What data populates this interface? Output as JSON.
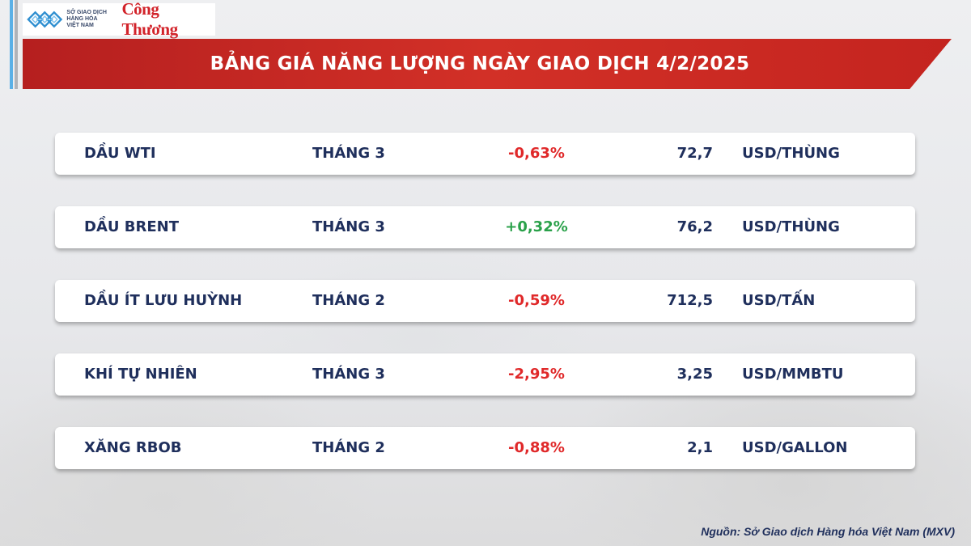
{
  "logo": {
    "exchange_lines": [
      "SỞ GIAO DỊCH",
      "HÀNG HÓA",
      "VIỆT NAM"
    ],
    "publisher": "Công Thương"
  },
  "header": {
    "title": "BẢNG GIÁ NĂNG LƯỢNG NGÀY GIAO DỊCH 4/2/2025"
  },
  "colors": {
    "negative": "#e0292a",
    "positive": "#2aa14a",
    "text": "#1f2f5c",
    "header_band": "#d23027"
  },
  "rows": [
    {
      "name": "DẦU WTI",
      "month": "THÁNG 3",
      "change": "-0,63%",
      "direction": "down",
      "price": "72,7",
      "unit": "USD/THÙNG"
    },
    {
      "name": "DẦU BRENT",
      "month": "THÁNG 3",
      "change": "+0,32%",
      "direction": "up",
      "price": "76,2",
      "unit": "USD/THÙNG"
    },
    {
      "name": "DẦU ÍT LƯU HUỲNH",
      "month": "THÁNG 2",
      "change": "-0,59%",
      "direction": "down",
      "price": "712,5",
      "unit": "USD/TẤN"
    },
    {
      "name": "KHÍ TỰ NHIÊN",
      "month": "THÁNG 3",
      "change": "-2,95%",
      "direction": "down",
      "price": "3,25",
      "unit": "USD/MMBTU"
    },
    {
      "name": "XĂNG RBOB",
      "month": "THÁNG 2",
      "change": "-0,88%",
      "direction": "down",
      "price": "2,1",
      "unit": "USD/GALLON"
    }
  ],
  "footer": {
    "source": "Nguồn: Sở Giao dịch Hàng hóa Việt Nam (MXV)"
  }
}
